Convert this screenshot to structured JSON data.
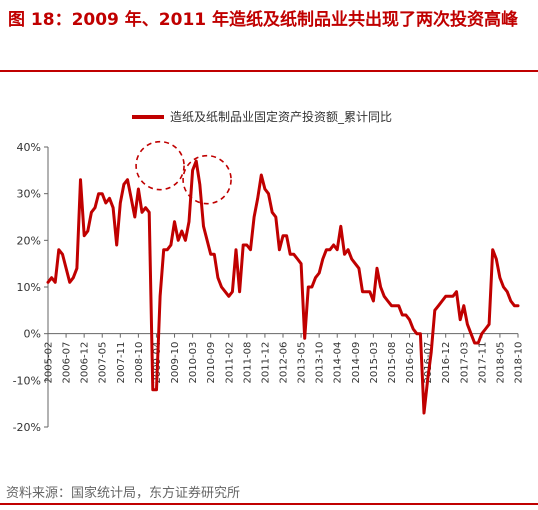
{
  "figure": {
    "title": "图 18：2009 年、2011 年造纸及纸制品业共出现了两次投资高峰",
    "source": "资料来源：国家统计局，东方证券研究所",
    "accent_color": "#c00000"
  },
  "chart_data": {
    "type": "line",
    "title": "",
    "xlabel": "",
    "ylabel": "",
    "ylim": [
      -20,
      40
    ],
    "yticks": [
      "-20%",
      "-10%",
      "0%",
      "10%",
      "20%",
      "30%",
      "40%"
    ],
    "ytick_values": [
      -20,
      -10,
      0,
      10,
      20,
      30,
      40
    ],
    "xtick_labels": [
      "2005-02",
      "2006-07",
      "2006-12",
      "2007-05",
      "2007-11",
      "2008-10",
      "2009-04",
      "2009-10",
      "2010-03",
      "2010-09",
      "2011-02",
      "2011-08",
      "2011-12",
      "2012-06",
      "2013-05",
      "2013-10",
      "2014-04",
      "2014-09",
      "2015-03",
      "2015-08",
      "2016-02",
      "2016-07",
      "2016-12",
      "2017-03",
      "2017-11",
      "2018-05",
      "2018-10"
    ],
    "legend": {
      "position": "top-center"
    },
    "grid": false,
    "annotations": [
      {
        "type": "dashed-circle",
        "x": 31,
        "y": 36
      },
      {
        "type": "dashed-circle",
        "x": 44,
        "y": 33
      }
    ],
    "series": [
      {
        "name": "造纸及纸制品业固定资产投资额_累计同比",
        "color": "#c00000",
        "values": [
          11,
          12,
          11,
          18,
          17,
          14,
          11,
          12,
          14,
          33,
          21,
          22,
          26,
          27,
          30,
          30,
          28,
          29,
          27,
          19,
          28,
          32,
          33,
          29,
          25,
          31,
          26,
          27,
          26,
          -12,
          -12,
          8,
          18,
          18,
          19,
          24,
          20,
          22,
          20,
          24,
          35,
          37,
          32,
          23,
          20,
          17,
          17,
          12,
          10,
          9,
          8,
          9,
          18,
          9,
          19,
          19,
          18,
          25,
          29,
          34,
          31,
          30,
          26,
          25,
          18,
          21,
          21,
          17,
          17,
          16,
          15,
          -1,
          10,
          10,
          12,
          13,
          16,
          18,
          18,
          19,
          18,
          23,
          17,
          18,
          16,
          15,
          14,
          9,
          9,
          9,
          7,
          14,
          10,
          8,
          7,
          6,
          6,
          6,
          4,
          4,
          3,
          1,
          0,
          0,
          -17,
          -10,
          -4,
          5,
          6,
          7,
          8,
          8,
          8,
          9,
          3,
          6,
          2,
          0,
          -2,
          -2,
          0,
          1,
          2,
          18,
          16,
          12,
          10,
          9,
          7,
          6,
          6
        ]
      }
    ]
  }
}
